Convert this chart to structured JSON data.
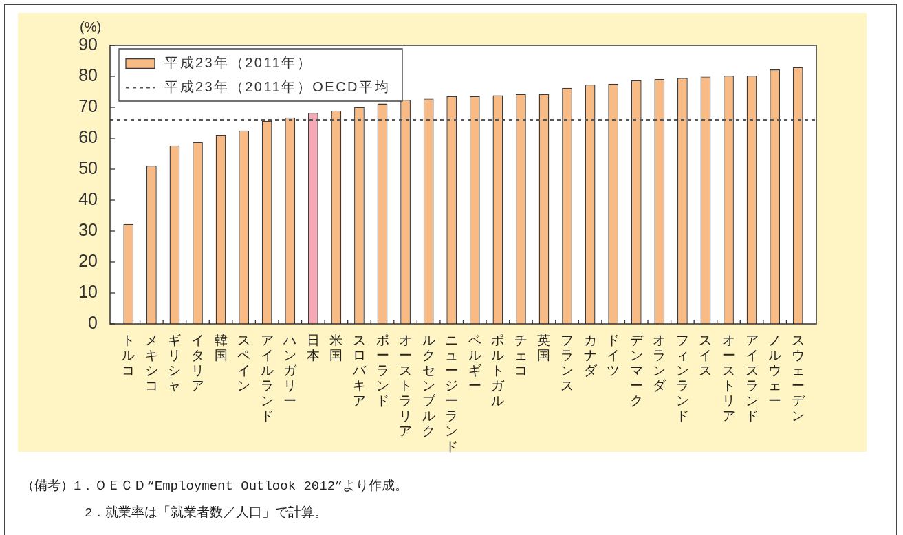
{
  "chart_data": {
    "type": "bar",
    "ylabel": "(%)",
    "categories": [
      "トルコ",
      "メキシコ",
      "ギリシャ",
      "イタリア",
      "韓国",
      "スペイン",
      "アイルランド",
      "ハンガリー",
      "日本",
      "米国",
      "スロバキア",
      "ポーランド",
      "オーストラリア",
      "ルクセンブルク",
      "ニュージーランド",
      "ベルギー",
      "ポルトガル",
      "チェコ",
      "英国",
      "フランス",
      "カナダ",
      "ドイツ",
      "デンマーク",
      "オランダ",
      "フィンランド",
      "スイス",
      "オーストリア",
      "アイスランド",
      "ノルウェー",
      "スウェーデン"
    ],
    "series": [
      {
        "name": "平成23年（2011年）",
        "color": "#f8bb86",
        "colors": [
          "#f8bb86",
          "#f8bb86",
          "#f8bb86",
          "#f8bb86",
          "#f8bb86",
          "#f8bb86",
          "#f8bb86",
          "#f8bb86",
          "#f4a9b4",
          "#f8bb86",
          "#f8bb86",
          "#f8bb86",
          "#f8bb86",
          "#f8bb86",
          "#f8bb86",
          "#f8bb86",
          "#f8bb86",
          "#f8bb86",
          "#f8bb86",
          "#f8bb86",
          "#f8bb86",
          "#f8bb86",
          "#f8bb86",
          "#f8bb86",
          "#f8bb86",
          "#f8bb86",
          "#f8bb86",
          "#f8bb86",
          "#f8bb86",
          "#f8bb86"
        ],
        "values": [
          32.3,
          51.1,
          57.6,
          58.7,
          61.0,
          62.5,
          65.6,
          66.7,
          68.2,
          68.9,
          70.1,
          71.2,
          72.4,
          72.8,
          73.6,
          73.6,
          73.9,
          74.3,
          74.3,
          76.3,
          77.3,
          77.6,
          78.7,
          79.1,
          79.5,
          79.9,
          80.2,
          80.2,
          82.2,
          83.0
        ]
      }
    ],
    "ylim": [
      0,
      90
    ],
    "yticks": [
      0,
      10,
      20,
      30,
      40,
      50,
      60,
      70,
      80,
      90
    ],
    "grid": false,
    "legend": "top left",
    "ref_lines": [
      {
        "axis": "y",
        "value": 65.9,
        "label": "平成23年（2011年）OECD平均",
        "color": "#555555",
        "line_style": "dashed"
      }
    ],
    "annotations": [
      "（備考）1．ＯＥＣＤ“Employment Outlook 2012”より作成。",
      "2．就業率は「就業者数／人口」で計算。"
    ]
  }
}
